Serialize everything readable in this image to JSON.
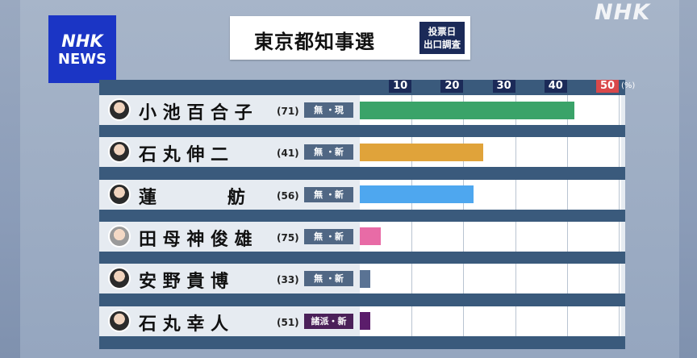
{
  "title": "東京都知事選",
  "badge": [
    "投票日",
    "出口調査"
  ],
  "logo": {
    "line1": "NHK",
    "line2": "NEWS"
  },
  "watermark": "NHK",
  "colors": {
    "koike": "#3aa369",
    "ishimaru_s": "#e0a33a",
    "renho": "#4ea7ef",
    "tamogami": "#e86ba6",
    "anno": "#5a7394",
    "ishimaru_y": "#5b1d6b"
  },
  "chart_data": {
    "type": "bar",
    "orientation": "horizontal",
    "ticks": [
      10,
      20,
      30,
      40,
      50
    ],
    "xlim": [
      0,
      51
    ],
    "unit": "(%)",
    "categories": [
      "小池百合子",
      "石丸伸二",
      "蓮舫",
      "田母神俊雄",
      "安野貴博",
      "石丸幸人"
    ],
    "values": [
      41.5,
      23.8,
      22.0,
      4.0,
      2.0,
      2.0
    ],
    "rows": [
      {
        "name": "小 池 百 合 子",
        "age": "(71)",
        "party": "無 ・現",
        "value": 41.5,
        "color": "#3aa369",
        "avatar": "dark"
      },
      {
        "name": "石 丸 伸 二",
        "age": "(41)",
        "party": "無 ・新",
        "value": 23.8,
        "color": "#e0a33a",
        "avatar": "dark"
      },
      {
        "name": "蓮　　　　舫",
        "age": "(56)",
        "party": "無 ・新",
        "value": 22.0,
        "color": "#4ea7ef",
        "avatar": "dark"
      },
      {
        "name": "田 母 神 俊 雄",
        "age": "(75)",
        "party": "無 ・新",
        "value": 4.0,
        "color": "#e86ba6",
        "avatar": "light"
      },
      {
        "name": "安 野 貴 博",
        "age": "(33)",
        "party": "無 ・新",
        "value": 2.0,
        "color": "#5a7394",
        "avatar": "dark"
      },
      {
        "name": "石 丸 幸 人",
        "age": "(51)",
        "party": "諸派・新",
        "value": 2.0,
        "color": "#5b1d6b",
        "avatar": "dark",
        "party_style": "purple"
      }
    ]
  }
}
